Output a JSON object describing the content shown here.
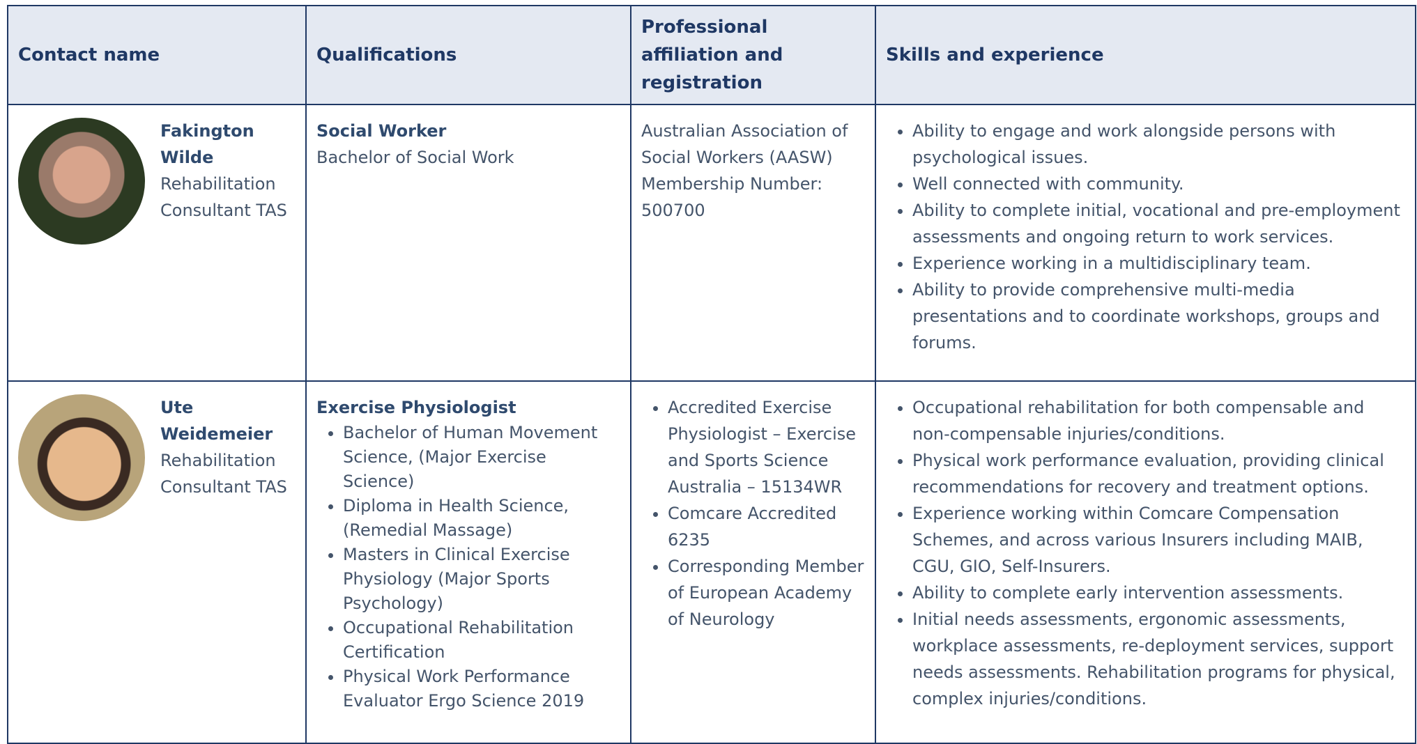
{
  "header": {
    "columns": [
      "Contact name",
      "Qualifications",
      "Professional affiliation and registration",
      "Skills and experience"
    ]
  },
  "rows": [
    {
      "name": "Fakington Wilde",
      "role": "Rehabilitation Consultant TAS",
      "qualification_title": "Social Worker",
      "qualifications": [
        "Bachelor of Social Work"
      ],
      "affiliation_text": "Australian Association of Social Workers (AASW) Membership Number: 500700",
      "skills": [
        "Ability to engage and work alongside persons with psychological issues.",
        "Well connected with community.",
        "Ability to complete initial, vocational and pre-employment assessments and ongoing return to work services.",
        "Experience working in a multidisciplinary team.",
        "Ability to provide comprehensive multi-media presentations and to coordinate workshops, groups and forums."
      ]
    },
    {
      "name": "Ute Weidemeier",
      "role": "Rehabilitation Consultant TAS",
      "qualification_title": "Exercise Physiologist",
      "qualification_list": [
        "Bachelor of Human Movement Science, (Major Exercise Science)",
        "Diploma in Health Science, (Remedial Massage)",
        "Masters in Clinical Exercise Physiology (Major Sports Psychology)",
        "Occupational Rehabilitation Certification",
        "Physical Work Performance Evaluator Ergo Science 2019"
      ],
      "affiliation_list": [
        "Accredited Exercise Physiologist – Exercise and Sports Science Australia – 15134WR",
        "Comcare Accredited 6235",
        "Corresponding Member of European Academy of Neurology"
      ],
      "skills": [
        "Occupational rehabilitation for both compensable and non-compensable injuries/conditions.",
        "Physical work performance evaluation, providing clinical recommendations for recovery and treatment options.",
        "Experience working within Comcare Compensation Schemes, and across various Insurers including MAIB, CGU, GIO, Self-Insurers.",
        "Ability to complete early intervention assessments.",
        "Initial needs assessments, ergonomic assessments, workplace assessments, re-deployment services, support needs assessments. Rehabilitation programs for physical, complex injuries/conditions."
      ]
    }
  ]
}
